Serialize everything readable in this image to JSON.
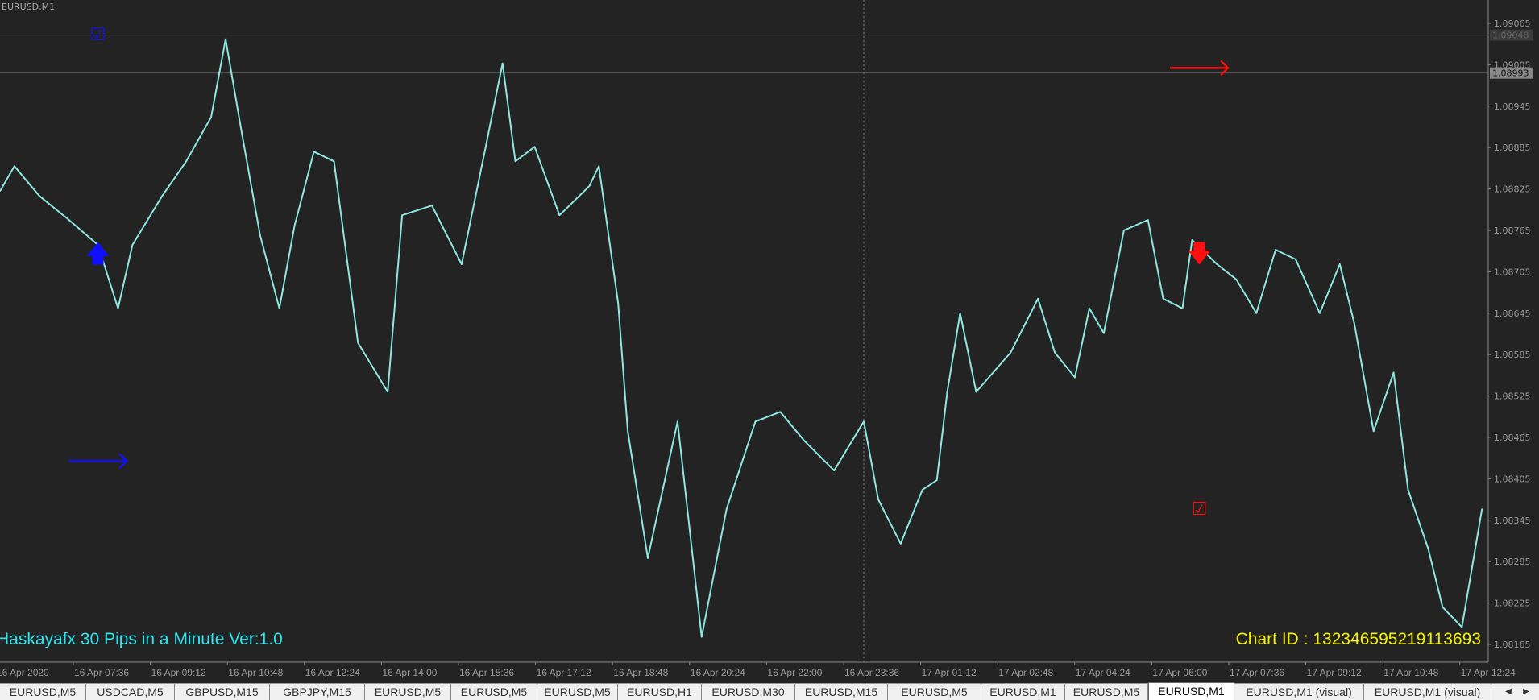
{
  "chart": {
    "symbol_label": "EURUSD,M1",
    "ea_label": "Haskayafx 30 Pips in a Minute Ver:1.0",
    "chart_id": "Chart ID : 132346595219113693",
    "colors": {
      "background": "#232323",
      "line": "#8ee6e0",
      "ea_text": "#2ee6f0",
      "chart_id": "#f4f000",
      "buy": "#1010ff",
      "sell": "#ff1010"
    },
    "markers": [
      {
        "type": "checkbox-icon",
        "color": "#1010ff",
        "time": "16 Apr 08:06",
        "price": 1.09048
      },
      {
        "type": "arrow-up-icon",
        "color": "#1010ff",
        "time": "16 Apr 08:06",
        "price": 1.0873
      },
      {
        "type": "arrow-right-icon",
        "color": "#1010ff",
        "time": "16 Apr 08:06",
        "price": 1.0843
      },
      {
        "type": "arrow-right-icon",
        "color": "#ff1010",
        "time": "17 Apr 06:58",
        "price": 1.09
      },
      {
        "type": "arrow-down-icon",
        "color": "#ff1010",
        "time": "17 Apr 06:58",
        "price": 1.0873
      },
      {
        "type": "checkbox-icon",
        "color": "#ff1010",
        "time": "17 Apr 06:58",
        "price": 1.0836
      }
    ],
    "marker_glyphs": {
      "checkbox-icon": "☑",
      "arrow-up-icon": "🡅",
      "arrow-down-icon": "🡇",
      "arrow-right-icon": "🡒"
    }
  },
  "chart_data": {
    "type": "line",
    "series": [
      {
        "points": [
          [
            "16 Apr 06:04",
            1.08822
          ],
          [
            "16 Apr 06:22",
            1.08858
          ],
          [
            "16 Apr 06:53",
            1.08815
          ],
          [
            "16 Apr 07:30",
            1.0878
          ],
          [
            "16 Apr 08:06",
            1.08744
          ],
          [
            "16 Apr 08:31",
            1.08652
          ],
          [
            "16 Apr 08:49",
            1.08744
          ],
          [
            "16 Apr 09:26",
            1.08815
          ],
          [
            "16 Apr 09:56",
            1.08865
          ],
          [
            "16 Apr 10:27",
            1.08929
          ],
          [
            "16 Apr 10:45",
            1.09042
          ],
          [
            "16 Apr 11:04",
            1.08914
          ],
          [
            "16 Apr 11:28",
            1.08758
          ],
          [
            "16 Apr 11:52",
            1.08652
          ],
          [
            "16 Apr 12:11",
            1.08772
          ],
          [
            "16 Apr 12:35",
            1.08879
          ],
          [
            "16 Apr 13:00",
            1.08865
          ],
          [
            "16 Apr 13:30",
            1.08602
          ],
          [
            "16 Apr 14:07",
            1.08531
          ],
          [
            "16 Apr 14:25",
            1.08787
          ],
          [
            "16 Apr 15:02",
            1.08801
          ],
          [
            "16 Apr 15:39",
            1.08716
          ],
          [
            "16 Apr 16:09",
            1.08886
          ],
          [
            "16 Apr 16:30",
            1.09007
          ],
          [
            "16 Apr 16:46",
            1.08865
          ],
          [
            "16 Apr 17:10",
            1.08886
          ],
          [
            "16 Apr 17:41",
            1.08787
          ],
          [
            "16 Apr 18:18",
            1.08829
          ],
          [
            "16 Apr 18:30",
            1.08858
          ],
          [
            "16 Apr 18:54",
            1.08659
          ],
          [
            "16 Apr 19:06",
            1.08474
          ],
          [
            "16 Apr 19:31",
            1.0829
          ],
          [
            "16 Apr 20:08",
            1.08488
          ],
          [
            "16 Apr 20:38",
            1.08176
          ],
          [
            "16 Apr 21:09",
            1.08361
          ],
          [
            "16 Apr 21:45",
            1.08488
          ],
          [
            "16 Apr 22:16",
            1.08502
          ],
          [
            "16 Apr 22:46",
            1.0846
          ],
          [
            "16 Apr 23:23",
            1.08417
          ],
          [
            "17 Apr 00:00",
            1.08488
          ],
          [
            "17 Apr 00:18",
            1.08375
          ],
          [
            "17 Apr 00:46",
            1.08311
          ],
          [
            "17 Apr 01:13",
            1.08389
          ],
          [
            "17 Apr 01:31",
            1.08403
          ],
          [
            "17 Apr 01:44",
            1.08531
          ],
          [
            "17 Apr 02:00",
            1.08645
          ],
          [
            "17 Apr 02:20",
            1.08531
          ],
          [
            "17 Apr 03:03",
            1.08588
          ],
          [
            "17 Apr 03:37",
            1.08666
          ],
          [
            "17 Apr 03:58",
            1.08588
          ],
          [
            "17 Apr 04:23",
            1.08552
          ],
          [
            "17 Apr 04:41",
            1.08652
          ],
          [
            "17 Apr 04:59",
            1.08616
          ],
          [
            "17 Apr 05:24",
            1.08765
          ],
          [
            "17 Apr 05:54",
            1.0878
          ],
          [
            "17 Apr 06:13",
            1.08666
          ],
          [
            "17 Apr 06:37",
            1.08652
          ],
          [
            "17 Apr 06:49",
            1.08751
          ],
          [
            "17 Apr 07:20",
            1.08716
          ],
          [
            "17 Apr 07:44",
            1.08694
          ],
          [
            "17 Apr 08:09",
            1.08645
          ],
          [
            "17 Apr 08:33",
            1.08737
          ],
          [
            "17 Apr 08:58",
            1.08723
          ],
          [
            "17 Apr 09:28",
            1.08645
          ],
          [
            "17 Apr 09:53",
            1.08716
          ],
          [
            "17 Apr 10:11",
            1.0863
          ],
          [
            "17 Apr 10:35",
            1.08474
          ],
          [
            "17 Apr 11:00",
            1.08559
          ],
          [
            "17 Apr 11:18",
            1.08389
          ],
          [
            "17 Apr 11:43",
            1.08304
          ],
          [
            "17 Apr 12:01",
            1.08219
          ],
          [
            "17 Apr 12:25",
            1.0819
          ],
          [
            "17 Apr 12:50",
            1.08361
          ]
        ]
      }
    ],
    "y_ticks": [
      "1.09065",
      "1.09005",
      "1.08945",
      "1.08885",
      "1.08825",
      "1.08765",
      "1.08705",
      "1.08645",
      "1.08585",
      "1.08525",
      "1.08465",
      "1.08405",
      "1.08345",
      "1.08285",
      "1.08225",
      "1.08165"
    ],
    "x_ticks": [
      "16 Apr 2020",
      "16 Apr 07:36",
      "16 Apr 09:12",
      "16 Apr 10:48",
      "16 Apr 12:24",
      "16 Apr 14:00",
      "16 Apr 15:36",
      "16 Apr 17:12",
      "16 Apr 18:48",
      "16 Apr 20:24",
      "16 Apr 22:00",
      "16 Apr 23:36",
      "17 Apr 01:12",
      "17 Apr 02:48",
      "17 Apr 04:24",
      "17 Apr 06:00",
      "17 Apr 07:36",
      "17 Apr 09:12",
      "17 Apr 10:48",
      "17 Apr 12:24"
    ],
    "ylim": [
      1.0813,
      1.0909
    ],
    "price_lines": [
      {
        "price": 1.09048,
        "label": "1.09048"
      },
      {
        "price": 1.08993,
        "label": "1.08993",
        "current": true
      }
    ],
    "crosshair_time": "17 Apr 00:00",
    "grid": false
  },
  "tabs": [
    {
      "label": "EURUSD,M5"
    },
    {
      "label": "USDCAD,M5"
    },
    {
      "label": "GBPUSD,M15"
    },
    {
      "label": "GBPJPY,M15"
    },
    {
      "label": "EURUSD,M5"
    },
    {
      "label": "EURUSD,M5"
    },
    {
      "label": "EURUSD,M5"
    },
    {
      "label": "EURUSD,H1"
    },
    {
      "label": "EURUSD,M30"
    },
    {
      "label": "EURUSD,M15"
    },
    {
      "label": "EURUSD,M5"
    },
    {
      "label": "EURUSD,M1"
    },
    {
      "label": "EURUSD,M5"
    },
    {
      "label": "EURUSD,M1",
      "active": true
    },
    {
      "label": "EURUSD,M1 (visual)"
    },
    {
      "label": "EURUSD,M1 (visual)"
    }
  ],
  "tab_scroll": {
    "left": "◀",
    "right": "▶"
  }
}
